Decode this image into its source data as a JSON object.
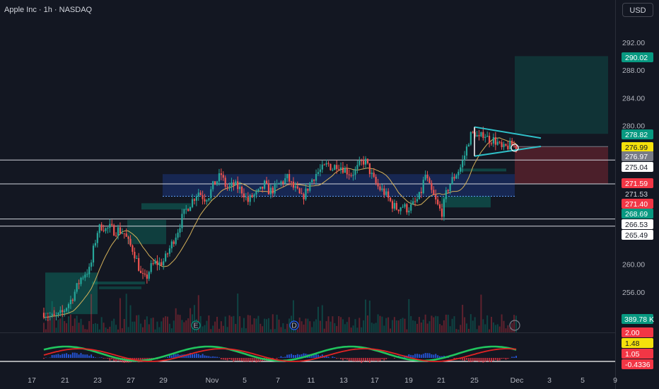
{
  "header": {
    "title": "Apple Inc · 1h · NASDAQ",
    "currency_button": "USD"
  },
  "colors": {
    "bg": "#131722",
    "up": "#26a69a",
    "down": "#ef5350",
    "ma": "#d4b15a",
    "triangle": "#2fc1c9",
    "osc_up": "#21c55e",
    "osc_down": "#e02424"
  },
  "chart_data": {
    "type": "candlestick",
    "y_axis": {
      "ticks": [
        292.0,
        288.0,
        284.0,
        280.0,
        260.0,
        256.0
      ]
    },
    "x_axis": {
      "labels": [
        "17",
        "21",
        "23",
        "27",
        "29",
        "Nov",
        "5",
        "7",
        "11",
        "13",
        "17",
        "19",
        "21",
        "25",
        "Dec",
        "3",
        "5",
        "9"
      ]
    },
    "price_tags": [
      {
        "value": "290.02",
        "bg": "#089981",
        "fg": "#ffffff"
      },
      {
        "value": "278.82",
        "bg": "#089981",
        "fg": "#ffffff"
      },
      {
        "value": "276.99",
        "bg": "#f5e10b",
        "fg": "#131722"
      },
      {
        "value": "276.97",
        "bg": "#787b86",
        "fg": "#ffffff"
      },
      {
        "value": "275.04",
        "bg": "#ffffff",
        "fg": "#131722"
      },
      {
        "value": "271.59",
        "bg": "#f23645",
        "fg": "#ffffff"
      },
      {
        "value": "271.53",
        "bg": "#131722",
        "fg": "#d1d4dc"
      },
      {
        "value": "271.40",
        "bg": "#f23645",
        "fg": "#ffffff"
      },
      {
        "value": "268.69",
        "bg": "#089981",
        "fg": "#ffffff"
      },
      {
        "value": "266.53",
        "bg": "#ffffff",
        "fg": "#131722"
      },
      {
        "value": "265.49",
        "bg": "#ffffff",
        "fg": "#131722"
      }
    ],
    "volume_tag": "389.78 K",
    "event_markers": [
      "E",
      "D"
    ],
    "oscillator": {
      "tags": [
        {
          "value": "2.00",
          "bg": "#f23645",
          "fg": "#ffffff"
        },
        {
          "value": "1.48",
          "bg": "#f5e10b",
          "fg": "#131722"
        },
        {
          "value": "1.05",
          "bg": "#f23645",
          "fg": "#ffffff"
        },
        {
          "value": "-0.4336",
          "bg": "#f23645",
          "fg": "#ffffff"
        }
      ]
    },
    "horizontal_levels": [
      275.04,
      271.59,
      266.53,
      265.49
    ],
    "price_path": [
      [
        0,
        253.0
      ],
      [
        3,
        252.6
      ],
      [
        6,
        252.3
      ],
      [
        9,
        252.5
      ],
      [
        12,
        253.0
      ],
      [
        15,
        254.0
      ],
      [
        18,
        255.0
      ],
      [
        21,
        256.5
      ],
      [
        24,
        258.0
      ],
      [
        27,
        258.8
      ],
      [
        30,
        259.2
      ],
      [
        32,
        262.0
      ],
      [
        35,
        265.0
      ],
      [
        38,
        265.6
      ],
      [
        40,
        265.0
      ],
      [
        43,
        265.3
      ],
      [
        46,
        264.7
      ],
      [
        48,
        265.0
      ],
      [
        52,
        264.5
      ],
      [
        55,
        263.0
      ],
      [
        58,
        262.0
      ],
      [
        61,
        260.0
      ],
      [
        63,
        258.3
      ],
      [
        66,
        257.8
      ],
      [
        69,
        259.5
      ],
      [
        72,
        260.2
      ],
      [
        75,
        260.1
      ],
      [
        78,
        260.5
      ],
      [
        81,
        262.0
      ],
      [
        84,
        263.5
      ],
      [
        87,
        265.0
      ],
      [
        90,
        267.0
      ],
      [
        94,
        268.5
      ],
      [
        97,
        269.5
      ],
      [
        100,
        270.5
      ],
      [
        104,
        269.5
      ],
      [
        107,
        270.0
      ],
      [
        110,
        271.5
      ],
      [
        112,
        272.0
      ],
      [
        115,
        273.0
      ],
      [
        117,
        271.5
      ],
      [
        120,
        271.0
      ],
      [
        123,
        271.5
      ],
      [
        126,
        271.0
      ],
      [
        129,
        270.5
      ],
      [
        132,
        269.0
      ],
      [
        135,
        269.8
      ],
      [
        137,
        270.0
      ],
      [
        140,
        270.5
      ],
      [
        143,
        271.5
      ],
      [
        146,
        270.5
      ],
      [
        149,
        270.8
      ],
      [
        152,
        271.5
      ],
      [
        155,
        272.0
      ],
      [
        158,
        272.5
      ],
      [
        161,
        271.2
      ],
      [
        164,
        270.5
      ],
      [
        167,
        269.5
      ],
      [
        170,
        270.5
      ],
      [
        173,
        272.0
      ],
      [
        176,
        273.0
      ],
      [
        179,
        273.5
      ],
      [
        182,
        274.0
      ],
      [
        184,
        274.5
      ],
      [
        187,
        273.8
      ],
      [
        190,
        274.5
      ],
      [
        193,
        274.0
      ],
      [
        196,
        273.5
      ],
      [
        199,
        273.0
      ],
      [
        202,
        273.5
      ],
      [
        205,
        274.5
      ],
      [
        208,
        275.0
      ],
      [
        211,
        273.5
      ],
      [
        214,
        272.0
      ],
      [
        217,
        271.0
      ],
      [
        220,
        270.5
      ],
      [
        223,
        269.5
      ],
      [
        226,
        268.5
      ],
      [
        229,
        268.0
      ],
      [
        232,
        268.5
      ],
      [
        235,
        268.0
      ],
      [
        238,
        268.3
      ],
      [
        241,
        269.0
      ],
      [
        244,
        270.0
      ],
      [
        247,
        273.0
      ],
      [
        250,
        271.0
      ],
      [
        253,
        269.5
      ],
      [
        256,
        268.0
      ],
      [
        258,
        267.5
      ],
      [
        261,
        270.5
      ],
      [
        264,
        272.0
      ],
      [
        267,
        273.0
      ],
      [
        270,
        274.0
      ],
      [
        273,
        276.0
      ],
      [
        276,
        278.5
      ],
      [
        279,
        279.0
      ],
      [
        282,
        278.0
      ],
      [
        285,
        279.0
      ],
      [
        288,
        278.0
      ],
      [
        291,
        278.0
      ],
      [
        294,
        277.5
      ],
      [
        297,
        276.5
      ],
      [
        300,
        277.0
      ],
      [
        303,
        277.2
      ],
      [
        306,
        277.0
      ]
    ]
  }
}
